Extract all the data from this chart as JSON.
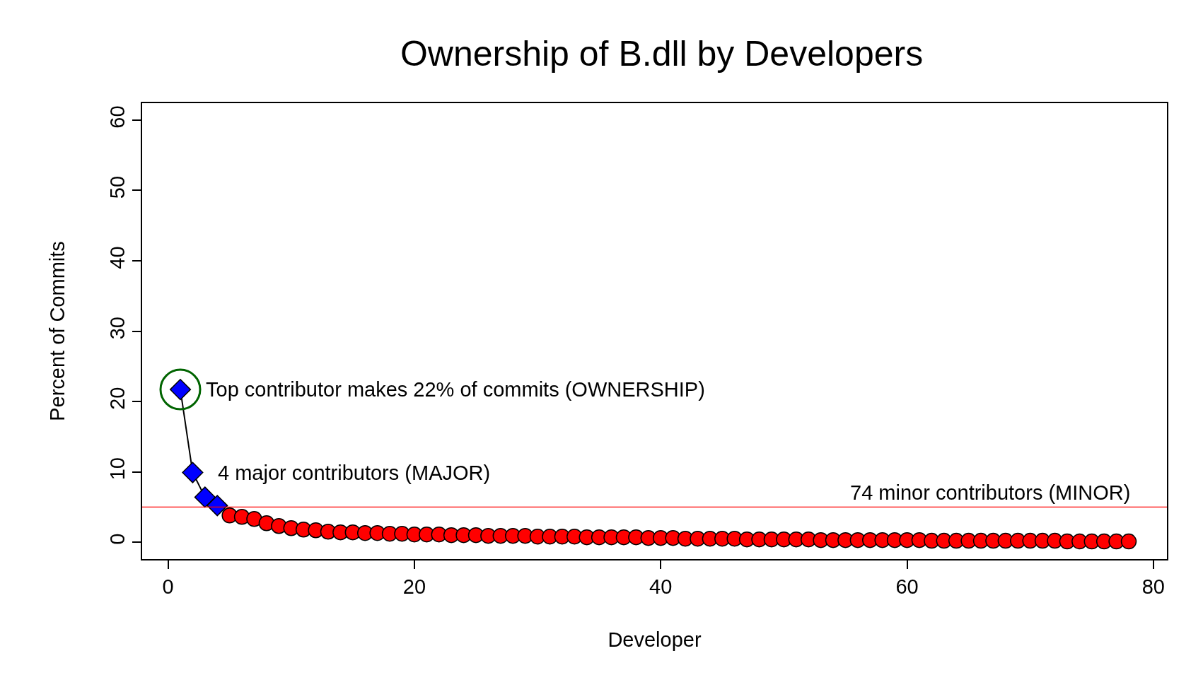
{
  "chart_data": {
    "type": "line",
    "title": "Ownership of B.dll by Developers",
    "xlabel": "Developer",
    "ylabel": "Percent of Commits",
    "xlim": [
      -2.1,
      81.1
    ],
    "xticks": [
      0,
      20,
      40,
      60,
      80
    ],
    "ylim": [
      -2.4,
      62.4
    ],
    "yticks": [
      0,
      10,
      20,
      30,
      40,
      50,
      60
    ],
    "series": [
      {
        "marker": "diamond",
        "color": "#0000ff",
        "x": [
          1,
          2,
          3,
          4
        ],
        "values": [
          21.7,
          9.9,
          6.4,
          5.2
        ]
      },
      {
        "type": "scatter",
        "marker": "circle",
        "color": "#ff0000",
        "x": [
          5,
          6,
          7,
          8,
          9,
          10,
          11,
          12,
          13,
          14,
          15,
          16,
          17,
          18,
          19,
          20,
          21,
          22,
          23,
          24,
          25,
          26,
          27,
          28,
          29,
          30,
          31,
          32,
          33,
          34,
          35,
          36,
          37,
          38,
          39,
          40,
          41,
          42,
          43,
          44,
          45,
          46,
          47,
          48,
          49,
          50,
          51,
          52,
          53,
          54,
          55,
          56,
          57,
          58,
          59,
          60,
          61,
          62,
          63,
          64,
          65,
          66,
          67,
          68,
          69,
          70,
          71,
          72,
          73,
          74,
          75,
          76,
          77,
          78
        ],
        "values": [
          3.8,
          3.6,
          3.3,
          2.7,
          2.3,
          2.0,
          1.8,
          1.7,
          1.5,
          1.4,
          1.4,
          1.3,
          1.3,
          1.2,
          1.2,
          1.1,
          1.1,
          1.1,
          1.0,
          1.0,
          1.0,
          0.9,
          0.9,
          0.9,
          0.9,
          0.8,
          0.8,
          0.8,
          0.8,
          0.7,
          0.7,
          0.7,
          0.7,
          0.7,
          0.6,
          0.6,
          0.6,
          0.5,
          0.5,
          0.5,
          0.5,
          0.5,
          0.4,
          0.4,
          0.4,
          0.4,
          0.4,
          0.4,
          0.3,
          0.3,
          0.3,
          0.3,
          0.3,
          0.3,
          0.3,
          0.3,
          0.3,
          0.2,
          0.2,
          0.2,
          0.2,
          0.2,
          0.2,
          0.2,
          0.2,
          0.2,
          0.2,
          0.2,
          0.1,
          0.1,
          0.1,
          0.1,
          0.1,
          0.1
        ]
      }
    ],
    "ref_lines": [
      {
        "axis": "y",
        "value": 5,
        "label": "74 minor contributors (MINOR)",
        "color": "#ff0000"
      }
    ],
    "annotations": [
      {
        "text": "Top contributor makes 22% of commits (OWNERSHIP)",
        "x": 1,
        "y": 21.7
      },
      {
        "text": "4 major contributors (MAJOR)",
        "x": 2,
        "y": 9.9
      }
    ]
  }
}
